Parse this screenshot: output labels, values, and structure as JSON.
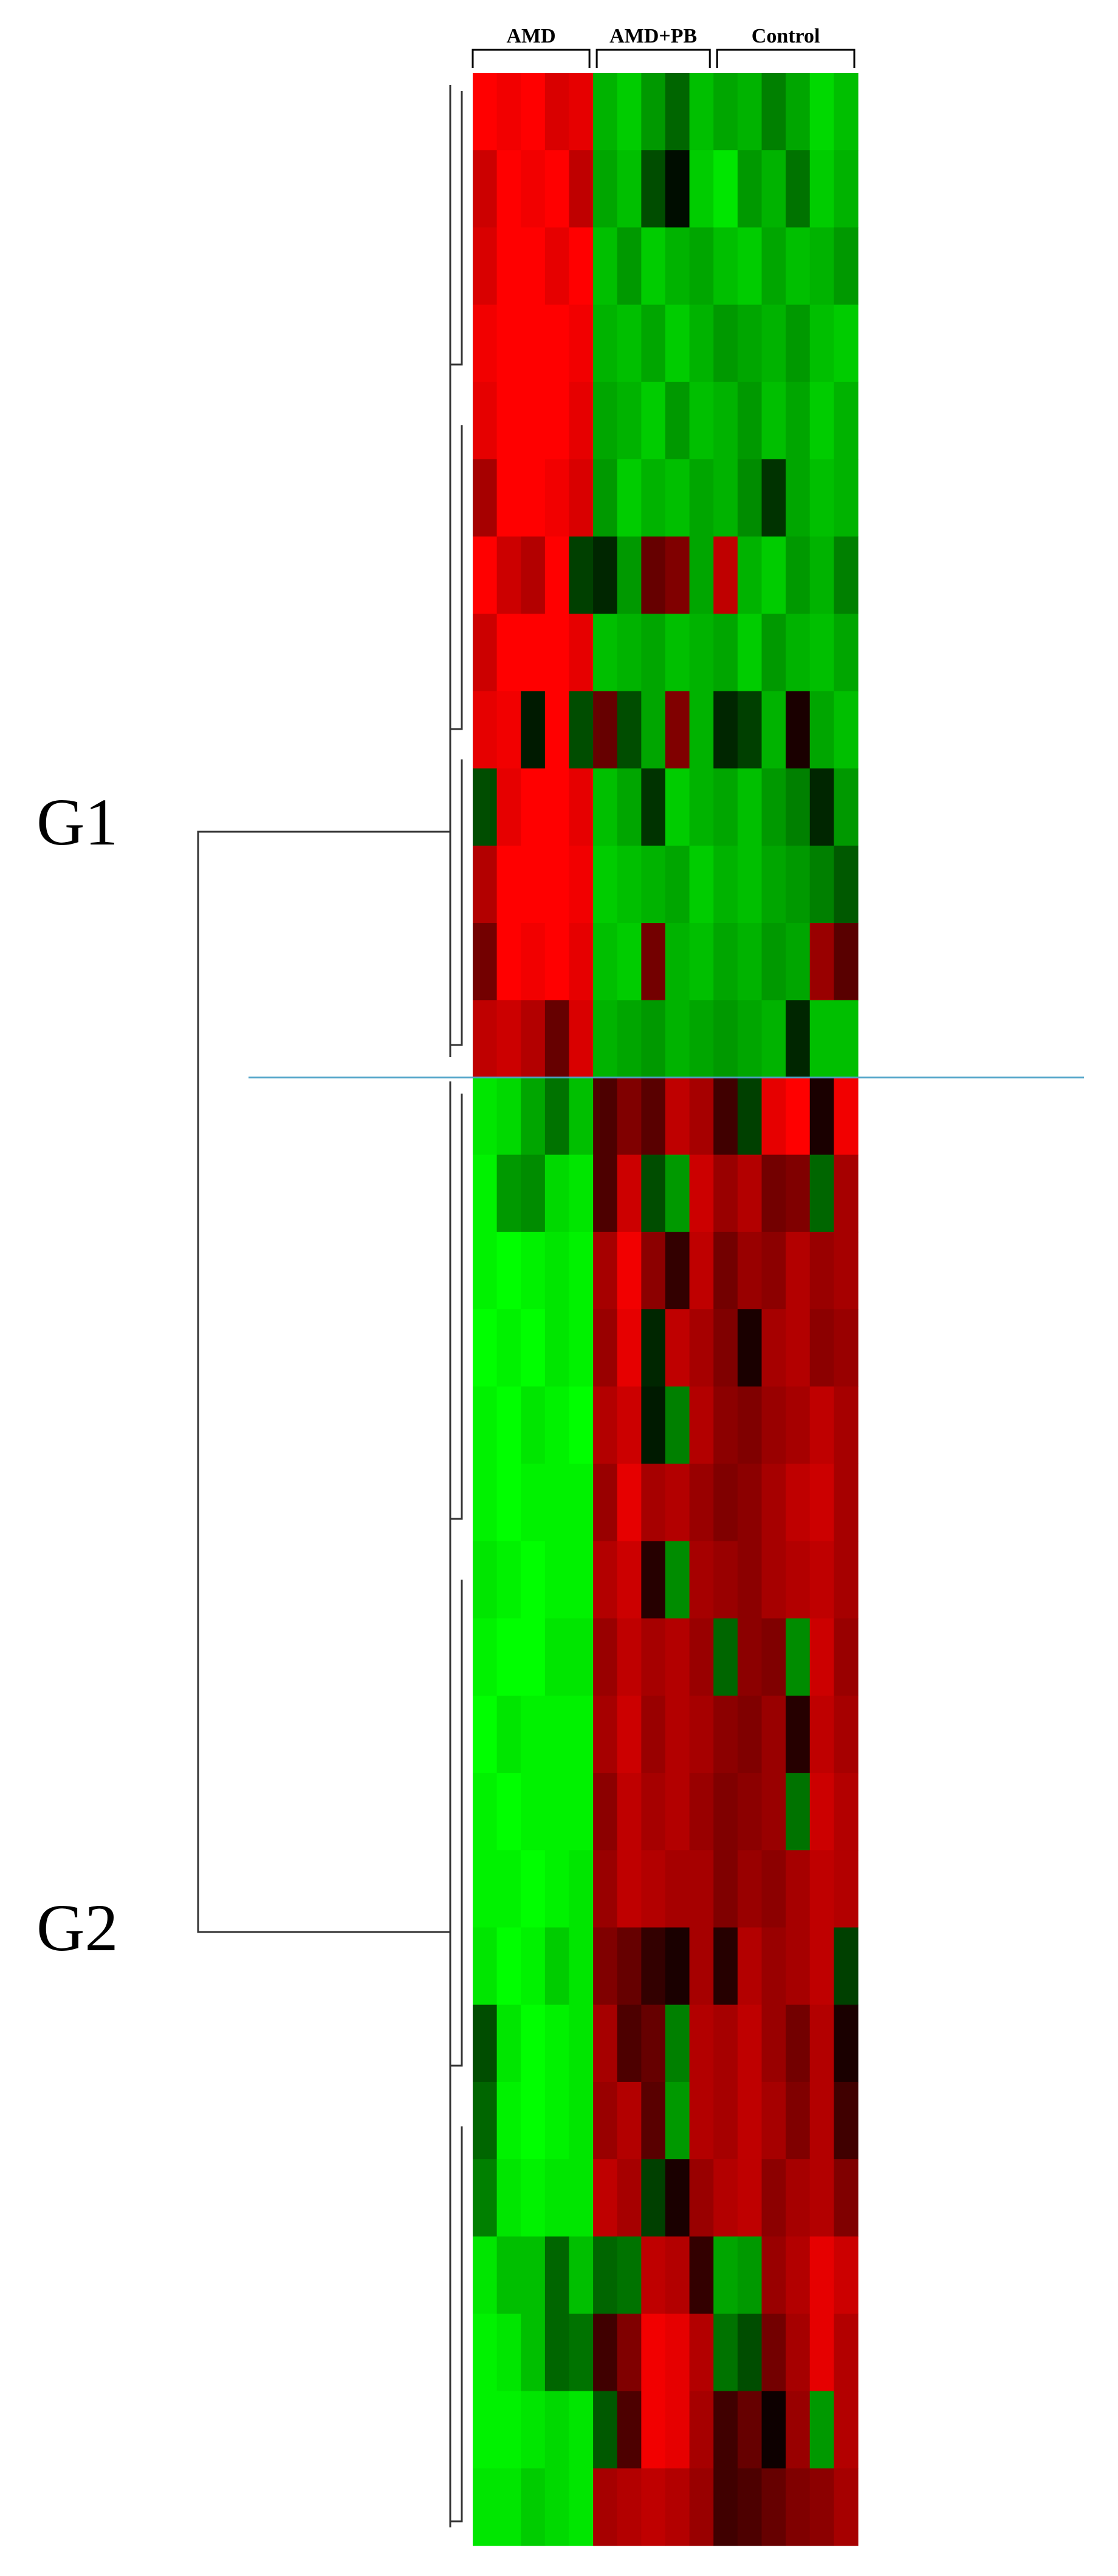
{
  "chart_data": {
    "type": "heatmap",
    "column_groups": [
      {
        "name": "AMD",
        "size": 5
      },
      {
        "name": "AMD+PB",
        "size": 5
      },
      {
        "name": "Control",
        "size": 6
      }
    ],
    "row_groups": [
      {
        "name": "G1",
        "size": 13
      },
      {
        "name": "G2",
        "size": 19
      }
    ],
    "clim": [
      -2,
      2
    ],
    "low_color": "#00ff00",
    "mid_color": "#000000",
    "high_color": "#ff0000",
    "values": [
      [
        2,
        1.9,
        2,
        1.7,
        1.8,
        -1.4,
        -1.6,
        -1.2,
        -0.8,
        -1.5,
        -1.3,
        -1.4,
        -1.0,
        -1.3,
        -1.7,
        -1.5
      ],
      [
        1.6,
        2,
        1.9,
        2,
        1.5,
        -1.3,
        -1.5,
        -0.6,
        -0.1,
        -1.6,
        -1.8,
        -1.2,
        -1.4,
        -0.9,
        -1.6,
        -1.4
      ],
      [
        1.7,
        2,
        2,
        1.8,
        2,
        -1.5,
        -1.2,
        -1.6,
        -1.4,
        -1.3,
        -1.5,
        -1.6,
        -1.3,
        -1.5,
        -1.4,
        -1.2
      ],
      [
        1.9,
        2,
        2,
        2,
        1.9,
        -1.4,
        -1.5,
        -1.3,
        -1.6,
        -1.4,
        -1.2,
        -1.3,
        -1.4,
        -1.2,
        -1.5,
        -1.6
      ],
      [
        1.8,
        2,
        2,
        2,
        1.8,
        -1.3,
        -1.4,
        -1.6,
        -1.2,
        -1.5,
        -1.4,
        -1.2,
        -1.5,
        -1.3,
        -1.6,
        -1.4
      ],
      [
        1.3,
        2,
        2,
        1.9,
        1.7,
        -1.2,
        -1.6,
        -1.4,
        -1.5,
        -1.3,
        -1.4,
        -1.1,
        -0.4,
        -1.3,
        -1.5,
        -1.4
      ],
      [
        2,
        1.6,
        1.4,
        2,
        -0.5,
        -0.3,
        -1.2,
        0.8,
        1.0,
        -1.3,
        1.5,
        -1.4,
        -1.6,
        -1.2,
        -1.4,
        -1.0
      ],
      [
        1.6,
        2,
        2,
        2,
        1.8,
        -1.5,
        -1.4,
        -1.3,
        -1.5,
        -1.4,
        -1.3,
        -1.6,
        -1.2,
        -1.4,
        -1.5,
        -1.3
      ],
      [
        1.8,
        1.9,
        -0.2,
        2,
        -0.6,
        0.8,
        -0.6,
        -1.3,
        1.0,
        -1.4,
        -0.3,
        -0.5,
        -1.4,
        0.2,
        -1.3,
        -1.5
      ],
      [
        -0.6,
        1.8,
        2,
        2,
        1.8,
        -1.5,
        -1.3,
        -0.4,
        -1.6,
        -1.4,
        -1.3,
        -1.5,
        -1.2,
        -1.0,
        -0.3,
        -1.2
      ],
      [
        1.4,
        2,
        2,
        2,
        1.9,
        -1.6,
        -1.5,
        -1.4,
        -1.3,
        -1.6,
        -1.4,
        -1.5,
        -1.3,
        -1.2,
        -1.0,
        -0.7
      ],
      [
        0.9,
        2,
        1.9,
        2,
        1.8,
        -1.5,
        -1.6,
        0.9,
        -1.4,
        -1.5,
        -1.3,
        -1.4,
        -1.2,
        -1.3,
        1.2,
        0.7
      ],
      [
        1.5,
        1.6,
        1.4,
        0.8,
        1.7,
        -1.4,
        -1.3,
        -1.2,
        -1.4,
        -1.3,
        -1.2,
        -1.3,
        -1.4,
        -0.3,
        -1.5,
        -1.5
      ],
      [
        -1.8,
        -1.7,
        -1.3,
        -0.9,
        -1.5,
        0.6,
        1.0,
        0.7,
        1.5,
        1.3,
        0.5,
        -0.5,
        1.8,
        2,
        0.2,
        1.9
      ],
      [
        -1.9,
        -1.2,
        -1.1,
        -1.7,
        -1.8,
        0.6,
        1.6,
        -0.6,
        -1.2,
        1.6,
        1.2,
        1.4,
        0.9,
        1.0,
        -0.8,
        1.3
      ],
      [
        -1.9,
        -2,
        -1.9,
        -1.8,
        -1.9,
        1.3,
        1.9,
        1.1,
        0.4,
        1.5,
        0.9,
        1.2,
        1.1,
        1.4,
        1.2,
        1.3
      ],
      [
        -2,
        -1.9,
        -2,
        -1.8,
        -1.9,
        1.2,
        1.8,
        -0.3,
        1.5,
        1.3,
        1.0,
        0.2,
        1.3,
        1.4,
        1.1,
        1.2
      ],
      [
        -1.9,
        -2,
        -1.8,
        -1.9,
        -2,
        1.4,
        1.6,
        -0.2,
        -1.0,
        1.4,
        1.1,
        1.0,
        1.2,
        1.3,
        1.5,
        1.3
      ],
      [
        -1.9,
        -2,
        -1.9,
        -1.9,
        -1.9,
        1.2,
        1.8,
        1.3,
        1.4,
        1.2,
        1.0,
        1.1,
        1.3,
        1.5,
        1.6,
        1.3
      ],
      [
        -1.8,
        -1.9,
        -2,
        -1.9,
        -1.9,
        1.4,
        1.6,
        0.3,
        -1.1,
        1.3,
        1.2,
        1.1,
        1.3,
        1.4,
        1.5,
        1.3
      ],
      [
        -1.9,
        -2,
        -2,
        -1.8,
        -1.8,
        1.2,
        1.5,
        1.3,
        1.4,
        1.2,
        -0.8,
        1.1,
        1.0,
        -1.1,
        1.6,
        1.2
      ],
      [
        -2,
        -1.8,
        -1.9,
        -1.9,
        -1.9,
        1.3,
        1.6,
        1.2,
        1.4,
        1.3,
        1.1,
        1.0,
        1.2,
        0.3,
        1.5,
        1.3
      ],
      [
        -1.9,
        -2,
        -1.9,
        -1.9,
        -1.9,
        1.1,
        1.5,
        1.3,
        1.4,
        1.2,
        1.0,
        1.1,
        1.2,
        -0.9,
        1.6,
        1.4
      ],
      [
        -1.9,
        -1.9,
        -2,
        -1.9,
        -1.8,
        1.2,
        1.5,
        1.4,
        1.3,
        1.3,
        1.0,
        1.2,
        1.1,
        1.3,
        1.5,
        1.4
      ],
      [
        -1.8,
        -2,
        -1.9,
        -1.6,
        -1.8,
        1.0,
        0.8,
        0.4,
        0.2,
        1.3,
        0.3,
        1.4,
        1.2,
        1.3,
        1.5,
        -0.5
      ],
      [
        -0.6,
        -1.8,
        -2,
        -1.9,
        -1.8,
        1.3,
        0.6,
        0.8,
        -1.0,
        1.4,
        1.3,
        1.5,
        1.2,
        0.9,
        1.4,
        0.2
      ],
      [
        -0.8,
        -1.9,
        -2,
        -1.9,
        -1.8,
        1.2,
        1.4,
        0.7,
        -1.2,
        1.4,
        1.3,
        1.5,
        1.3,
        1.0,
        1.4,
        0.5
      ],
      [
        -1.0,
        -1.8,
        -1.9,
        -1.8,
        -1.8,
        1.5,
        1.3,
        -0.5,
        0.2,
        1.2,
        1.4,
        1.5,
        1.1,
        1.3,
        1.4,
        1.0
      ],
      [
        -1.8,
        -1.5,
        -1.5,
        -0.8,
        -1.5,
        -0.8,
        -0.9,
        1.5,
        1.4,
        0.4,
        -1.3,
        -1.2,
        1.2,
        1.4,
        1.8,
        1.6
      ],
      [
        -1.9,
        -1.8,
        -1.5,
        -0.8,
        -0.9,
        0.5,
        1.0,
        1.9,
        1.8,
        1.4,
        -0.9,
        -0.6,
        0.9,
        1.3,
        1.8,
        1.4
      ],
      [
        -1.9,
        -1.9,
        -1.8,
        -1.7,
        -1.8,
        -0.7,
        0.6,
        1.9,
        1.8,
        1.3,
        0.5,
        0.8,
        0.1,
        1.2,
        -1.2,
        1.4
      ],
      [
        -1.8,
        -1.8,
        -1.6,
        -1.7,
        -1.8,
        1.3,
        1.4,
        1.5,
        1.4,
        1.2,
        0.5,
        0.6,
        0.8,
        1.0,
        1.1,
        1.3
      ]
    ]
  }
}
